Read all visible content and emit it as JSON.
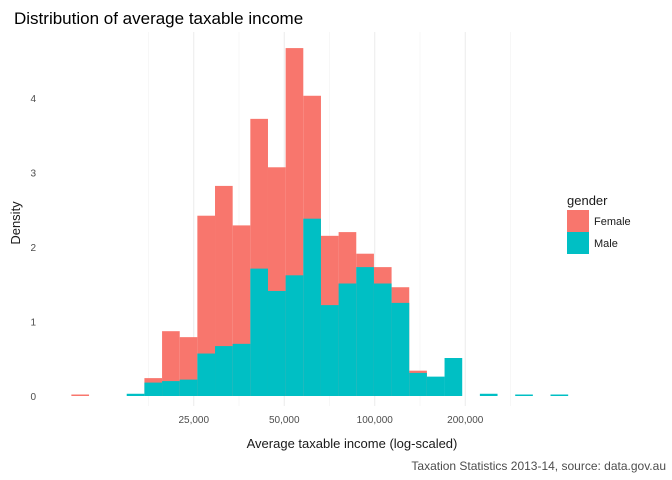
{
  "chart_data": {
    "type": "histogram",
    "title": "Distribution of average taxable income",
    "xlabel": "Average taxable income (log-scaled)",
    "ylabel": "Density",
    "caption": "Taxation Statistics 2013-14, source: data.gov.au",
    "x_scale": "log10",
    "x_ticks": [
      25000,
      50000,
      100000,
      200000
    ],
    "x_tick_labels": [
      "25,000",
      "50,000",
      "100,000",
      "200,000"
    ],
    "y_ticks": [
      0,
      1,
      2,
      3,
      4
    ],
    "y_tick_labels": [
      "0",
      "1",
      "2",
      "3",
      "4"
    ],
    "ylim": [
      0,
      4.95
    ],
    "grid": true,
    "legend": {
      "title": "gender",
      "position": "right"
    },
    "series": [
      {
        "name": "Female",
        "color": "#F8766D",
        "bins": [
          {
            "x0": 9790,
            "x1": 11210,
            "y": 0.02
          },
          {
            "x0": 17130,
            "x1": 19610,
            "y": 0.24
          },
          {
            "x0": 19610,
            "x1": 22450,
            "y": 0.87
          },
          {
            "x0": 22450,
            "x1": 25700,
            "y": 0.79
          },
          {
            "x0": 25700,
            "x1": 29420,
            "y": 2.42
          },
          {
            "x0": 29420,
            "x1": 33680,
            "y": 2.82
          },
          {
            "x0": 33680,
            "x1": 38560,
            "y": 2.29
          },
          {
            "x0": 38560,
            "x1": 44140,
            "y": 3.72
          },
          {
            "x0": 44140,
            "x1": 50530,
            "y": 3.07
          },
          {
            "x0": 50530,
            "x1": 57850,
            "y": 4.67
          },
          {
            "x0": 57850,
            "x1": 66230,
            "y": 4.03
          },
          {
            "x0": 66230,
            "x1": 75820,
            "y": 2.15
          },
          {
            "x0": 75820,
            "x1": 86800,
            "y": 2.2
          },
          {
            "x0": 86800,
            "x1": 99370,
            "y": 1.91
          },
          {
            "x0": 99370,
            "x1": 113760,
            "y": 1.73
          },
          {
            "x0": 113760,
            "x1": 130230,
            "y": 1.46
          },
          {
            "x0": 130230,
            "x1": 149090,
            "y": 0.34
          }
        ]
      },
      {
        "name": "Male",
        "color": "#00BFC4",
        "bins": [
          {
            "x0": 14960,
            "x1": 17130,
            "y": 0.03
          },
          {
            "x0": 17130,
            "x1": 19610,
            "y": 0.18
          },
          {
            "x0": 19610,
            "x1": 22450,
            "y": 0.2
          },
          {
            "x0": 22450,
            "x1": 25700,
            "y": 0.22
          },
          {
            "x0": 25700,
            "x1": 29420,
            "y": 0.57
          },
          {
            "x0": 29420,
            "x1": 33680,
            "y": 0.67
          },
          {
            "x0": 33680,
            "x1": 38560,
            "y": 0.7
          },
          {
            "x0": 38560,
            "x1": 44140,
            "y": 1.71
          },
          {
            "x0": 44140,
            "x1": 50530,
            "y": 1.41
          },
          {
            "x0": 50530,
            "x1": 57850,
            "y": 1.62
          },
          {
            "x0": 57850,
            "x1": 66230,
            "y": 2.38
          },
          {
            "x0": 66230,
            "x1": 75820,
            "y": 1.22
          },
          {
            "x0": 75820,
            "x1": 86800,
            "y": 1.51
          },
          {
            "x0": 86800,
            "x1": 99370,
            "y": 1.73
          },
          {
            "x0": 99370,
            "x1": 113760,
            "y": 1.51
          },
          {
            "x0": 113760,
            "x1": 130230,
            "y": 1.25
          },
          {
            "x0": 130230,
            "x1": 149090,
            "y": 0.31
          },
          {
            "x0": 149090,
            "x1": 170680,
            "y": 0.26
          },
          {
            "x0": 170680,
            "x1": 195410,
            "y": 0.51
          },
          {
            "x0": 223710,
            "x1": 256110,
            "y": 0.03
          },
          {
            "x0": 293200,
            "x1": 335660,
            "y": 0.02
          },
          {
            "x0": 384280,
            "x1": 439930,
            "y": 0.02
          }
        ]
      }
    ]
  }
}
